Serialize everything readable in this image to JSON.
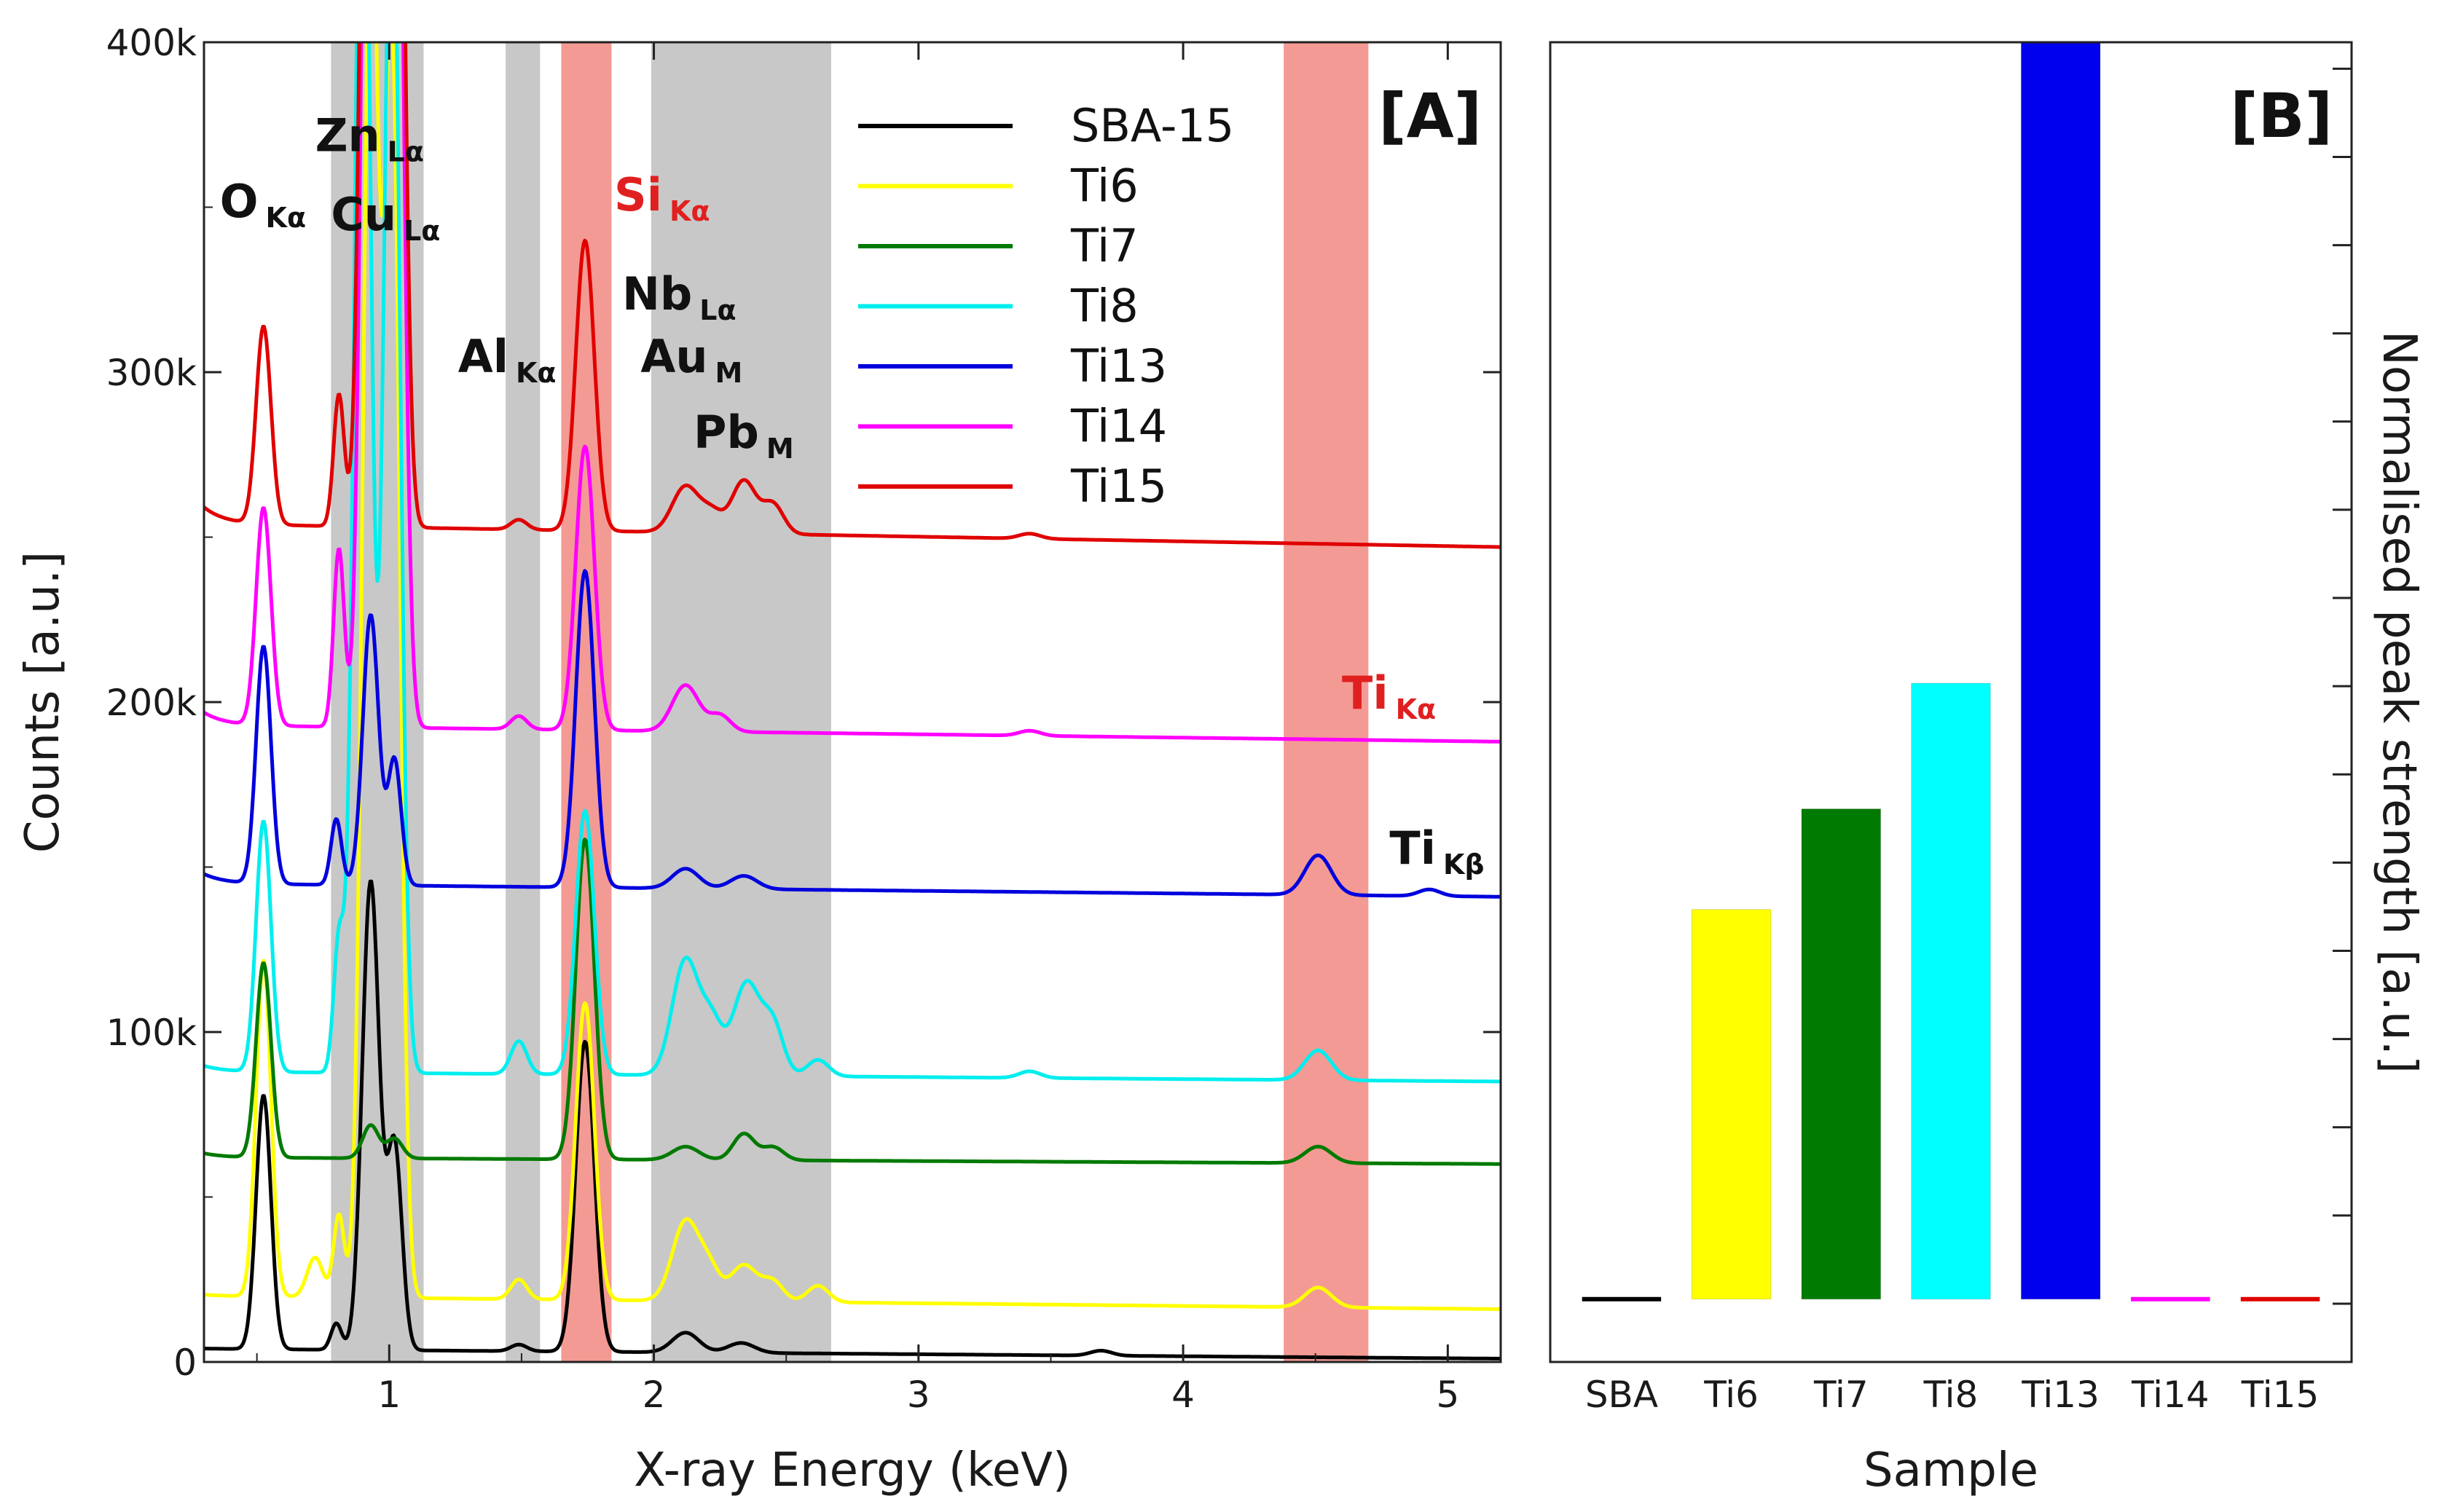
{
  "chart_data": [
    {
      "panel_label": "[A]",
      "type": "line",
      "title": "",
      "xlabel": "X-ray Energy (keV)",
      "ylabel": "Counts [a.u.]",
      "xlim": [
        0.3,
        5.2
      ],
      "ylim": [
        0,
        400000
      ],
      "xticks": [
        1,
        2,
        3,
        4,
        5
      ],
      "xtick_labels": [
        "1",
        "2",
        "3",
        "4",
        "5"
      ],
      "yticks": [
        0,
        100000,
        200000,
        300000,
        400000
      ],
      "ytick_labels": [
        "0",
        "100k",
        "200k",
        "300k",
        "400k"
      ],
      "legend_position": "top-right",
      "shaded_regions": [
        {
          "x0": 0.78,
          "x1": 1.13,
          "color": "#c8c8c8"
        },
        {
          "x0": 1.44,
          "x1": 1.57,
          "color": "#c8c8c8"
        },
        {
          "x0": 1.65,
          "x1": 1.84,
          "color": "#f49a94"
        },
        {
          "x0": 1.99,
          "x1": 2.67,
          "color": "#c8c8c8"
        },
        {
          "x0": 4.38,
          "x1": 4.7,
          "color": "#f49a94"
        }
      ],
      "annotations": [
        {
          "main": "O",
          "sub": "Kα",
          "x": 0.36,
          "y": 347000,
          "color": "#111111"
        },
        {
          "main": "Zn",
          "sub": "Lα",
          "x": 0.72,
          "y": 367000,
          "color": "#111111"
        },
        {
          "main": "Cu",
          "sub": "Lα",
          "x": 0.78,
          "y": 343000,
          "color": "#111111"
        },
        {
          "main": "Al",
          "sub": "Kα",
          "x": 1.26,
          "y": 300000,
          "color": "#111111"
        },
        {
          "main": "Si",
          "sub": "Kα",
          "x": 1.85,
          "y": 349000,
          "color": "#e02020"
        },
        {
          "main": "Nb",
          "sub": "Lα",
          "x": 1.88,
          "y": 319000,
          "color": "#111111"
        },
        {
          "main": "Au",
          "sub": "M",
          "x": 1.95,
          "y": 300000,
          "color": "#111111"
        },
        {
          "main": "Pb",
          "sub": "M",
          "x": 2.15,
          "y": 277000,
          "color": "#111111"
        },
        {
          "main": "Ti",
          "sub": "Kα",
          "x": 4.6,
          "y": 198000,
          "color": "#e02020"
        },
        {
          "main": "Ti",
          "sub": "Kβ",
          "x": 4.78,
          "y": 151000,
          "color": "#111111"
        }
      ],
      "series": [
        {
          "name": "SBA-15",
          "color": "#000000",
          "base_start": 4000,
          "base_end": 1000,
          "peaks": [
            [
              0.525,
              77000,
              0.028
            ],
            [
              0.8,
              8000,
              0.02
            ],
            [
              0.93,
              142000,
              0.032
            ],
            [
              1.02,
              62000,
              0.028
            ],
            [
              1.49,
              2000,
              0.03
            ],
            [
              1.74,
              94000,
              0.035
            ],
            [
              2.12,
              6000,
              0.05
            ],
            [
              2.33,
              3000,
              0.05
            ],
            [
              3.69,
              1500,
              0.04
            ]
          ]
        },
        {
          "name": "Ti6",
          "color": "#ffff00",
          "base_start": 20000,
          "base_end": 16000,
          "peaks": [
            [
              0.525,
              102000,
              0.028
            ],
            [
              0.72,
              12000,
              0.03
            ],
            [
              0.81,
              25000,
              0.02
            ],
            [
              0.93,
              420000,
              0.03
            ],
            [
              1.01,
              380000,
              0.03
            ],
            [
              1.49,
              6000,
              0.03
            ],
            [
              1.74,
              90000,
              0.035
            ],
            [
              2.12,
              24000,
              0.05
            ],
            [
              2.21,
              9000,
              0.04
            ],
            [
              2.34,
              11000,
              0.05
            ],
            [
              2.45,
              6000,
              0.04
            ],
            [
              2.62,
              5000,
              0.04
            ],
            [
              4.51,
              6000,
              0.05
            ]
          ]
        },
        {
          "name": "Ti7",
          "color": "#007a00",
          "base_start": 62000,
          "base_end": 60000,
          "peaks": [
            [
              0.525,
              59000,
              0.028
            ],
            [
              0.93,
              10000,
              0.03
            ],
            [
              1.02,
              6000,
              0.03
            ],
            [
              1.74,
              97000,
              0.035
            ],
            [
              2.12,
              4000,
              0.05
            ],
            [
              2.34,
              8000,
              0.04
            ],
            [
              2.45,
              4000,
              0.04
            ],
            [
              4.51,
              5000,
              0.05
            ]
          ]
        },
        {
          "name": "Ti8",
          "color": "#00eeee",
          "base_start": 88000,
          "base_end": 85000,
          "peaks": [
            [
              0.525,
              76000,
              0.028
            ],
            [
              0.81,
              40000,
              0.02
            ],
            [
              0.9,
              420000,
              0.03
            ],
            [
              1.01,
              380000,
              0.03
            ],
            [
              1.49,
              10000,
              0.03
            ],
            [
              1.74,
              80000,
              0.035
            ],
            [
              2.12,
              35000,
              0.05
            ],
            [
              2.22,
              15000,
              0.04
            ],
            [
              2.35,
              28000,
              0.05
            ],
            [
              2.45,
              15000,
              0.04
            ],
            [
              2.62,
              5000,
              0.04
            ],
            [
              3.42,
              2000,
              0.04
            ],
            [
              4.51,
              9000,
              0.05
            ]
          ]
        },
        {
          "name": "Ti13",
          "color": "#0000dd",
          "base_start": 145000,
          "base_end": 141000,
          "peaks": [
            [
              0.525,
              72000,
              0.028
            ],
            [
              0.8,
              20000,
              0.02
            ],
            [
              0.93,
              82000,
              0.03
            ],
            [
              1.02,
              38000,
              0.025
            ],
            [
              1.74,
              96000,
              0.035
            ],
            [
              2.12,
              6000,
              0.05
            ],
            [
              2.34,
              4000,
              0.05
            ],
            [
              4.51,
              12000,
              0.05
            ],
            [
              4.93,
              2000,
              0.04
            ]
          ]
        },
        {
          "name": "Ti14",
          "color": "#ff00ff",
          "base_start": 193000,
          "base_end": 188000,
          "peaks": [
            [
              0.525,
              66000,
              0.028
            ],
            [
              0.81,
              54000,
              0.02
            ],
            [
              0.93,
              420000,
              0.03
            ],
            [
              1.02,
              380000,
              0.03
            ],
            [
              1.49,
              4000,
              0.03
            ],
            [
              1.74,
              86000,
              0.035
            ],
            [
              2.12,
              14000,
              0.05
            ],
            [
              2.25,
              5000,
              0.04
            ],
            [
              3.42,
              1500,
              0.04
            ]
          ]
        },
        {
          "name": "Ti15",
          "color": "#e00000",
          "base_start": 254000,
          "base_end": 247000,
          "peaks": [
            [
              0.525,
              60000,
              0.028
            ],
            [
              0.81,
              40000,
              0.02
            ],
            [
              0.93,
              420000,
              0.03
            ],
            [
              1.02,
              380000,
              0.03
            ],
            [
              1.49,
              3000,
              0.03
            ],
            [
              1.74,
              88000,
              0.035
            ],
            [
              2.12,
              14000,
              0.05
            ],
            [
              2.22,
              6000,
              0.04
            ],
            [
              2.34,
              16000,
              0.045
            ],
            [
              2.45,
              9000,
              0.04
            ],
            [
              3.42,
              1500,
              0.04
            ]
          ]
        }
      ]
    },
    {
      "panel_label": "[B]",
      "type": "bar",
      "title": "",
      "xlabel": "Sample",
      "ylabel": "Normalised peak strength [a.u.]",
      "ylim": [
        -0.05,
        1.0
      ],
      "ytick_count": 16,
      "categories": [
        "SBA",
        "Ti6",
        "Ti7",
        "Ti8",
        "Ti13",
        "Ti14",
        "Ti15"
      ],
      "values": [
        0.0,
        0.31,
        0.39,
        0.49,
        1.0,
        0.0,
        0.0
      ],
      "colors": [
        "#000000",
        "#ffff00",
        "#007a00",
        "#00ffff",
        "#0000ee",
        "#ff00ff",
        "#e00000"
      ]
    }
  ]
}
